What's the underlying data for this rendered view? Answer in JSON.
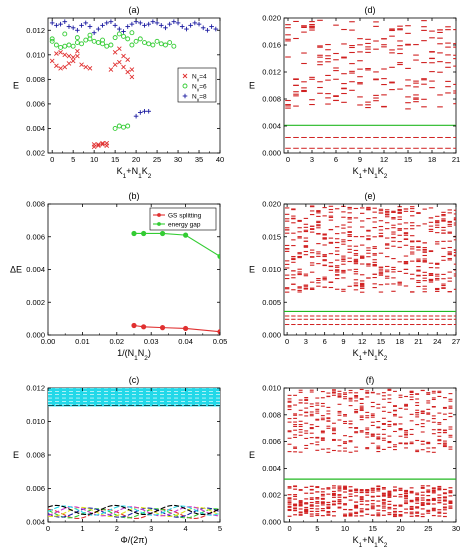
{
  "chart_data": [
    {
      "id": "a",
      "type": "scatter",
      "title": "(a)",
      "xlabel": "K1+N1K2",
      "ylabel": "E",
      "xlim": [
        -1,
        40
      ],
      "ylim": [
        0.002,
        0.013
      ],
      "xticks": [
        "0",
        "5",
        "10",
        "15",
        "20",
        "25",
        "30",
        "35",
        "40"
      ],
      "yticks": [
        "0.002",
        "0.004",
        "0.006",
        "0.008",
        "0.010",
        "0.012"
      ],
      "legend": "top-right",
      "series": [
        {
          "name": "Nv=4",
          "marker": "x",
          "color": "#e03030",
          "x": [
            0,
            1,
            2,
            3,
            4,
            5,
            6,
            7,
            8,
            9,
            10,
            11,
            12,
            13,
            14,
            15,
            16,
            17,
            18,
            19,
            1,
            2,
            3,
            4,
            5,
            6,
            10,
            11,
            12,
            13,
            15,
            16,
            17,
            18,
            19
          ],
          "y": [
            0.0095,
            0.0091,
            0.0089,
            0.009,
            0.0093,
            0.0095,
            0.0099,
            0.0092,
            0.009,
            0.0089,
            0.0025,
            0.0027,
            0.0028,
            0.0026,
            0.0088,
            0.0092,
            0.0094,
            0.009,
            0.0086,
            0.0088,
            0.0101,
            0.0102,
            0.01,
            0.0099,
            0.0098,
            0.0103,
            0.0027,
            0.0026,
            0.0027,
            0.0028,
            0.0102,
            0.0105,
            0.0099,
            0.0096,
            0.0082
          ]
        },
        {
          "name": "Nv=6",
          "marker": "o",
          "color": "#33cc33",
          "x": [
            0,
            1,
            2,
            3,
            4,
            5,
            6,
            7,
            8,
            9,
            10,
            11,
            12,
            13,
            14,
            15,
            16,
            17,
            18,
            19,
            20,
            21,
            22,
            23,
            24,
            25,
            26,
            27,
            28,
            29,
            0,
            3,
            6,
            9,
            12,
            15,
            16,
            17,
            18,
            19
          ],
          "y": [
            0.0111,
            0.0108,
            0.0106,
            0.0107,
            0.0108,
            0.0107,
            0.011,
            0.0109,
            0.0112,
            0.0113,
            0.0111,
            0.011,
            0.0109,
            0.0107,
            0.0108,
            0.004,
            0.0042,
            0.0041,
            0.0042,
            0.0108,
            0.0111,
            0.0113,
            0.011,
            0.0109,
            0.0108,
            0.0111,
            0.0109,
            0.0108,
            0.011,
            0.0107,
            0.0113,
            0.0117,
            0.0114,
            0.0116,
            0.0112,
            0.0114,
            0.0117,
            0.0115,
            0.0113,
            0.0118
          ]
        },
        {
          "name": "Nv=8",
          "marker": "+",
          "color": "#1a1aa0",
          "x": [
            0,
            1,
            2,
            3,
            4,
            5,
            6,
            7,
            8,
            9,
            10,
            11,
            12,
            13,
            14,
            15,
            16,
            17,
            18,
            19,
            20,
            21,
            22,
            23,
            24,
            25,
            26,
            27,
            28,
            29,
            30,
            31,
            32,
            33,
            34,
            35,
            36,
            37,
            38,
            39,
            20,
            21,
            22,
            23
          ],
          "y": [
            0.0126,
            0.0124,
            0.0125,
            0.0127,
            0.0123,
            0.0122,
            0.012,
            0.0124,
            0.0126,
            0.0123,
            0.0118,
            0.0121,
            0.0124,
            0.0126,
            0.0127,
            0.0124,
            0.0121,
            0.0119,
            0.0123,
            0.0125,
            0.0127,
            0.0126,
            0.0124,
            0.0125,
            0.0127,
            0.0126,
            0.0124,
            0.0122,
            0.0125,
            0.0127,
            0.0126,
            0.0123,
            0.0121,
            0.0124,
            0.0126,
            0.0125,
            0.0122,
            0.012,
            0.0123,
            0.0121,
            0.005,
            0.0053,
            0.0054,
            0.0054
          ]
        }
      ]
    },
    {
      "id": "b",
      "type": "line",
      "title": "(b)",
      "xlabel": "1/(N1N2)",
      "ylabel": "ΔE",
      "xlim": [
        0,
        0.05
      ],
      "ylim": [
        0,
        0.008
      ],
      "xticks": [
        "0.00",
        "0.01",
        "0.02",
        "0.03",
        "0.04",
        "0.05"
      ],
      "yticks": [
        "0.000",
        "0.002",
        "0.004",
        "0.006",
        "0.008"
      ],
      "legend": "top-right",
      "series": [
        {
          "name": "GS splitting",
          "color": "#e03030",
          "x": [
            0.025,
            0.0278,
            0.0333,
            0.04,
            0.05
          ],
          "y": [
            0.00058,
            0.0005,
            0.00045,
            0.0004,
            0.0002
          ]
        },
        {
          "name": "energy gap",
          "color": "#33cc33",
          "x": [
            0.025,
            0.0278,
            0.0333,
            0.04,
            0.05
          ],
          "y": [
            0.0062,
            0.0062,
            0.0062,
            0.0061,
            0.0048
          ]
        }
      ]
    },
    {
      "id": "c",
      "type": "line",
      "title": "(c)",
      "xlabel": "Φ/(2π)",
      "ylabel": "E",
      "xlim": [
        0,
        5
      ],
      "ylim": [
        0.004,
        0.012
      ],
      "xticks": [
        "0",
        "1",
        "2",
        "3",
        "4",
        "5"
      ],
      "yticks": [
        "0.004",
        "0.006",
        "0.008",
        "0.010",
        "0.012"
      ],
      "upper_band": {
        "color": "#22d8e8",
        "from": 0.0109,
        "to": 0.0121
      },
      "lower_band": {
        "colors": [
          "#e03030",
          "#33cc33",
          "#1a1aa0",
          "#e0e020",
          "#cc33cc",
          "#22d8e8",
          "#000000"
        ],
        "center": 0.0046,
        "amplitude": 0.0003
      }
    },
    {
      "id": "d",
      "type": "scatter",
      "title": "(d)",
      "xlabel": "K1+N1K2",
      "ylabel": "E",
      "xlim": [
        -0.5,
        21
      ],
      "ylim": [
        0,
        0.02
      ],
      "xticks": [
        "0",
        "3",
        "6",
        "9",
        "12",
        "15",
        "18",
        "21"
      ],
      "yticks": [
        "0.000",
        "0.004",
        "0.008",
        "0.012",
        "0.016",
        "0.020"
      ],
      "gap_line": 0.0041,
      "lower_levels": [
        0.0007,
        0.0023
      ],
      "upper_range": [
        0.0065,
        0.0197
      ],
      "upper_levels_per_k": 10
    },
    {
      "id": "e",
      "type": "scatter",
      "title": "(e)",
      "xlabel": "K1+N1K2",
      "ylabel": "E",
      "xlim": [
        -0.5,
        27
      ],
      "ylim": [
        0,
        0.02
      ],
      "xticks": [
        "0",
        "3",
        "6",
        "9",
        "12",
        "15",
        "18",
        "21",
        "24",
        "27"
      ],
      "yticks": [
        "0.000",
        "0.005",
        "0.010",
        "0.015",
        "0.020"
      ],
      "gap_line": 0.0036,
      "lower_levels": [
        0.0016,
        0.0024,
        0.0029
      ],
      "upper_range": [
        0.0065,
        0.0198
      ],
      "upper_levels_per_k": 20
    },
    {
      "id": "f",
      "type": "scatter",
      "title": "(f)",
      "xlabel": "K1+N1K2",
      "ylabel": "E",
      "xlim": [
        -1,
        30
      ],
      "ylim": [
        0,
        0.01
      ],
      "xticks": [
        "0",
        "5",
        "10",
        "15",
        "20",
        "25",
        "30"
      ],
      "yticks": [
        "0.000",
        "0.002",
        "0.004",
        "0.006",
        "0.008",
        "0.010"
      ],
      "gap_line": 0.0032,
      "lower_range": [
        0.0004,
        0.0027
      ],
      "lower_levels_per_k": 14,
      "upper_range": [
        0.0052,
        0.0099
      ],
      "upper_levels_per_k": 14
    }
  ]
}
